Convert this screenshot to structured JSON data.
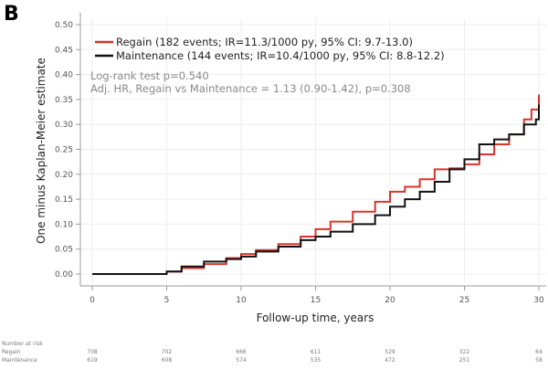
{
  "panel_label": "B",
  "chart_data": {
    "type": "line",
    "title": "",
    "xlabel": "Follow-up time, years",
    "ylabel": "One minus Kaplan-Meier estimate",
    "xlim": [
      0,
      30
    ],
    "ylim": [
      0,
      0.5
    ],
    "xticks": [
      0,
      5,
      10,
      15,
      20,
      25,
      30
    ],
    "yticks": [
      "0.00",
      "0.05",
      "0.10",
      "0.15",
      "0.20",
      "0.25",
      "0.30",
      "0.35",
      "0.40",
      "0.45",
      "0.50"
    ],
    "grid": true,
    "legend_position": "top-left",
    "series": [
      {
        "name": "Regain (182 events; IR=11.3/1000 py, 95% CI: 9.7-13.0)",
        "color": "#d9342b",
        "x": [
          0,
          4,
          5,
          6,
          7.5,
          9,
          10,
          11,
          12.5,
          14,
          15,
          16,
          17.5,
          19,
          20,
          21,
          22,
          23,
          24,
          25,
          26,
          27,
          28,
          29,
          29.5,
          30
        ],
        "y": [
          0,
          0,
          0.005,
          0.012,
          0.02,
          0.032,
          0.04,
          0.048,
          0.06,
          0.075,
          0.09,
          0.105,
          0.125,
          0.145,
          0.165,
          0.175,
          0.19,
          0.21,
          0.212,
          0.22,
          0.24,
          0.26,
          0.28,
          0.31,
          0.33,
          0.36
        ]
      },
      {
        "name": "Maintenance (144 events; IR=10.4/1000 py, 95% CI: 8.8-12.2)",
        "color": "#111111",
        "x": [
          0,
          4,
          5,
          6,
          7.5,
          9,
          10,
          11,
          12.5,
          14,
          15,
          16,
          17.5,
          19,
          20,
          21,
          22,
          23,
          24,
          25,
          26,
          27,
          28,
          29,
          29.8,
          30
        ],
        "y": [
          0,
          0,
          0.005,
          0.015,
          0.025,
          0.03,
          0.035,
          0.045,
          0.055,
          0.068,
          0.075,
          0.085,
          0.1,
          0.118,
          0.135,
          0.15,
          0.165,
          0.185,
          0.21,
          0.23,
          0.26,
          0.27,
          0.28,
          0.3,
          0.31,
          0.34
        ]
      }
    ],
    "annotations": [
      "Log-rank test p=0.540",
      "Adj. HR, Regain vs Maintenance = 1.13 (0.90-1.42), p=0.308"
    ]
  },
  "risk_table": {
    "title": "Number at risk",
    "rows": [
      {
        "label": "Regain",
        "values": [
          "708",
          "702",
          "666",
          "611",
          "529",
          "322",
          "64"
        ]
      },
      {
        "label": "Maintenance",
        "values": [
          "619",
          "608",
          "574",
          "535",
          "472",
          "251",
          "58"
        ]
      }
    ]
  }
}
